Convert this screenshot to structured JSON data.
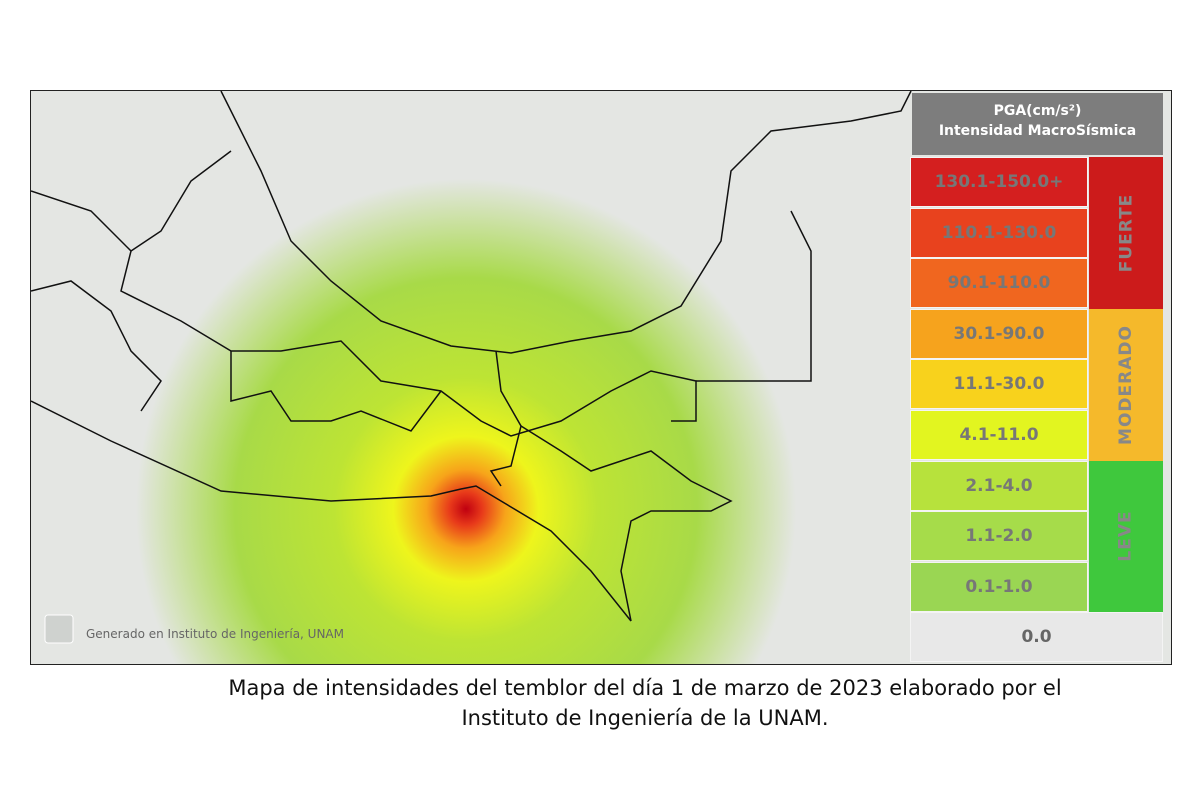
{
  "legend": {
    "title": [
      "PGA(cm/s²)",
      "Intensidad MacroSísmica"
    ],
    "ranges": [
      {
        "label": "130.1-150.0+",
        "color": "#d41f1f"
      },
      {
        "label": "110.1-130.0",
        "color": "#e8421e"
      },
      {
        "label": "90.1-110.0",
        "color": "#f0661f"
      },
      {
        "label": "30.1-90.0",
        "color": "#f6a31d"
      },
      {
        "label": "11.1-30.0",
        "color": "#f8d21c"
      },
      {
        "label": "4.1-11.0",
        "color": "#e2f520"
      },
      {
        "label": "2.1-4.0",
        "color": "#b7e23c"
      },
      {
        "label": "1.1-2.0",
        "color": "#a6dc4a"
      },
      {
        "label": "0.1-1.0",
        "color": "#9ad653"
      },
      {
        "label": "0.0",
        "color": "#e8e8e8"
      }
    ],
    "levels": [
      {
        "label": "FUERTE",
        "color": "#cc1b1b",
        "rows": 3
      },
      {
        "label": "MODERADO",
        "color": "#f5b92b",
        "rows": 3
      },
      {
        "label": "LEVE",
        "color": "#3fc83d",
        "rows": 3
      }
    ]
  },
  "watermark": "Generado en Instituto de Ingeniería, UNAM",
  "caption": [
    "Mapa de intensidades del temblor del día 1 de marzo de 2023 elaborado por el",
    "Instituto de Ingeniería de la UNAM."
  ]
}
